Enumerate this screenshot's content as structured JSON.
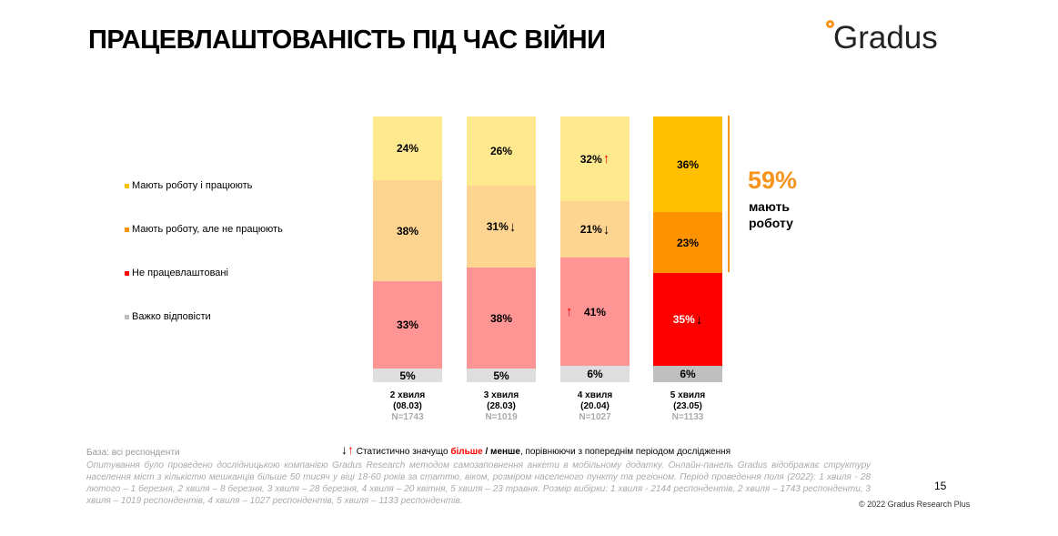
{
  "title": "ПРАЦЕВЛАШТОВАНІСТЬ ПІД ЧАС ВІЙНИ",
  "logo": "Gradus",
  "chart_data": {
    "type": "bar",
    "stacked": true,
    "categories": [
      {
        "wave": "2 хвиля",
        "date": "(08.03)",
        "n": "N=1743"
      },
      {
        "wave": "3 хвиля",
        "date": "(28.03)",
        "n": "N=1019"
      },
      {
        "wave": "4 хвиля",
        "date": "(20.04)",
        "n": "N=1027"
      },
      {
        "wave": "5 хвиля",
        "date": "(23.05)",
        "n": "N=1133"
      }
    ],
    "series": [
      {
        "name": "Мають роботу і працюють",
        "color": "#ffc000",
        "muted": "#ffe98f",
        "values": [
          24,
          26,
          32,
          36
        ],
        "arrows": [
          "",
          "",
          "up",
          ""
        ]
      },
      {
        "name": "Мають роботу, але не працюють",
        "color": "#ff9200",
        "muted": "#fdd490",
        "values": [
          38,
          31,
          21,
          23
        ],
        "arrows": [
          "",
          "down",
          "down",
          ""
        ]
      },
      {
        "name": "Не працевлаштовані",
        "color": "#ff0000",
        "muted": "#ff9494",
        "values": [
          33,
          38,
          41,
          35
        ],
        "arrows": [
          "",
          "",
          "up-left",
          "down"
        ]
      },
      {
        "name": "Важко відповісти",
        "color": "#bfbfbf",
        "muted": "#dedede",
        "values": [
          5,
          5,
          6,
          6
        ],
        "arrows": [
          "",
          "",
          "",
          ""
        ]
      }
    ],
    "highlight_last": true,
    "ylim": [
      0,
      100
    ]
  },
  "summary": {
    "value": "59%",
    "label": "мають роботу"
  },
  "significance": {
    "prefix": "Статистично значущо ",
    "more": "більше",
    "sep": " / ",
    "less": "менше",
    "suffix": ", порівнюючи з попереднім періодом дослідження"
  },
  "base": "База: всі респонденти",
  "method": "Опитування було проведено дослідницькою компанією Gradus Research методом самозаповнення анкети в мобільному додатку. Онлайн-панель Gradus відображає структуру населення міст з кількістю мешканців більше 50 тисяч у віці 18-60 років за статтю, віком, розміром населеного пункту та регіоном. Період проведення поля (2022): 1 хвиля - 28 лютого – 1 березня, 2 хвиля – 8 березня, 3 хвиля – 28 березня, 4 хвиля – 20 квітня, 5 хвиля – 23 травня. Розмір вибірки: 1 хвиля - 2144 респондентів, 2 хвиля – 1743 респонденти, 3 хвиля – 1019 респондентів, 4 хвиля – 1027 респондентів, 5 хвиля – 1133 респондентів.",
  "page_number": "15",
  "copyright": "© 2022 Gradus Research Plus"
}
